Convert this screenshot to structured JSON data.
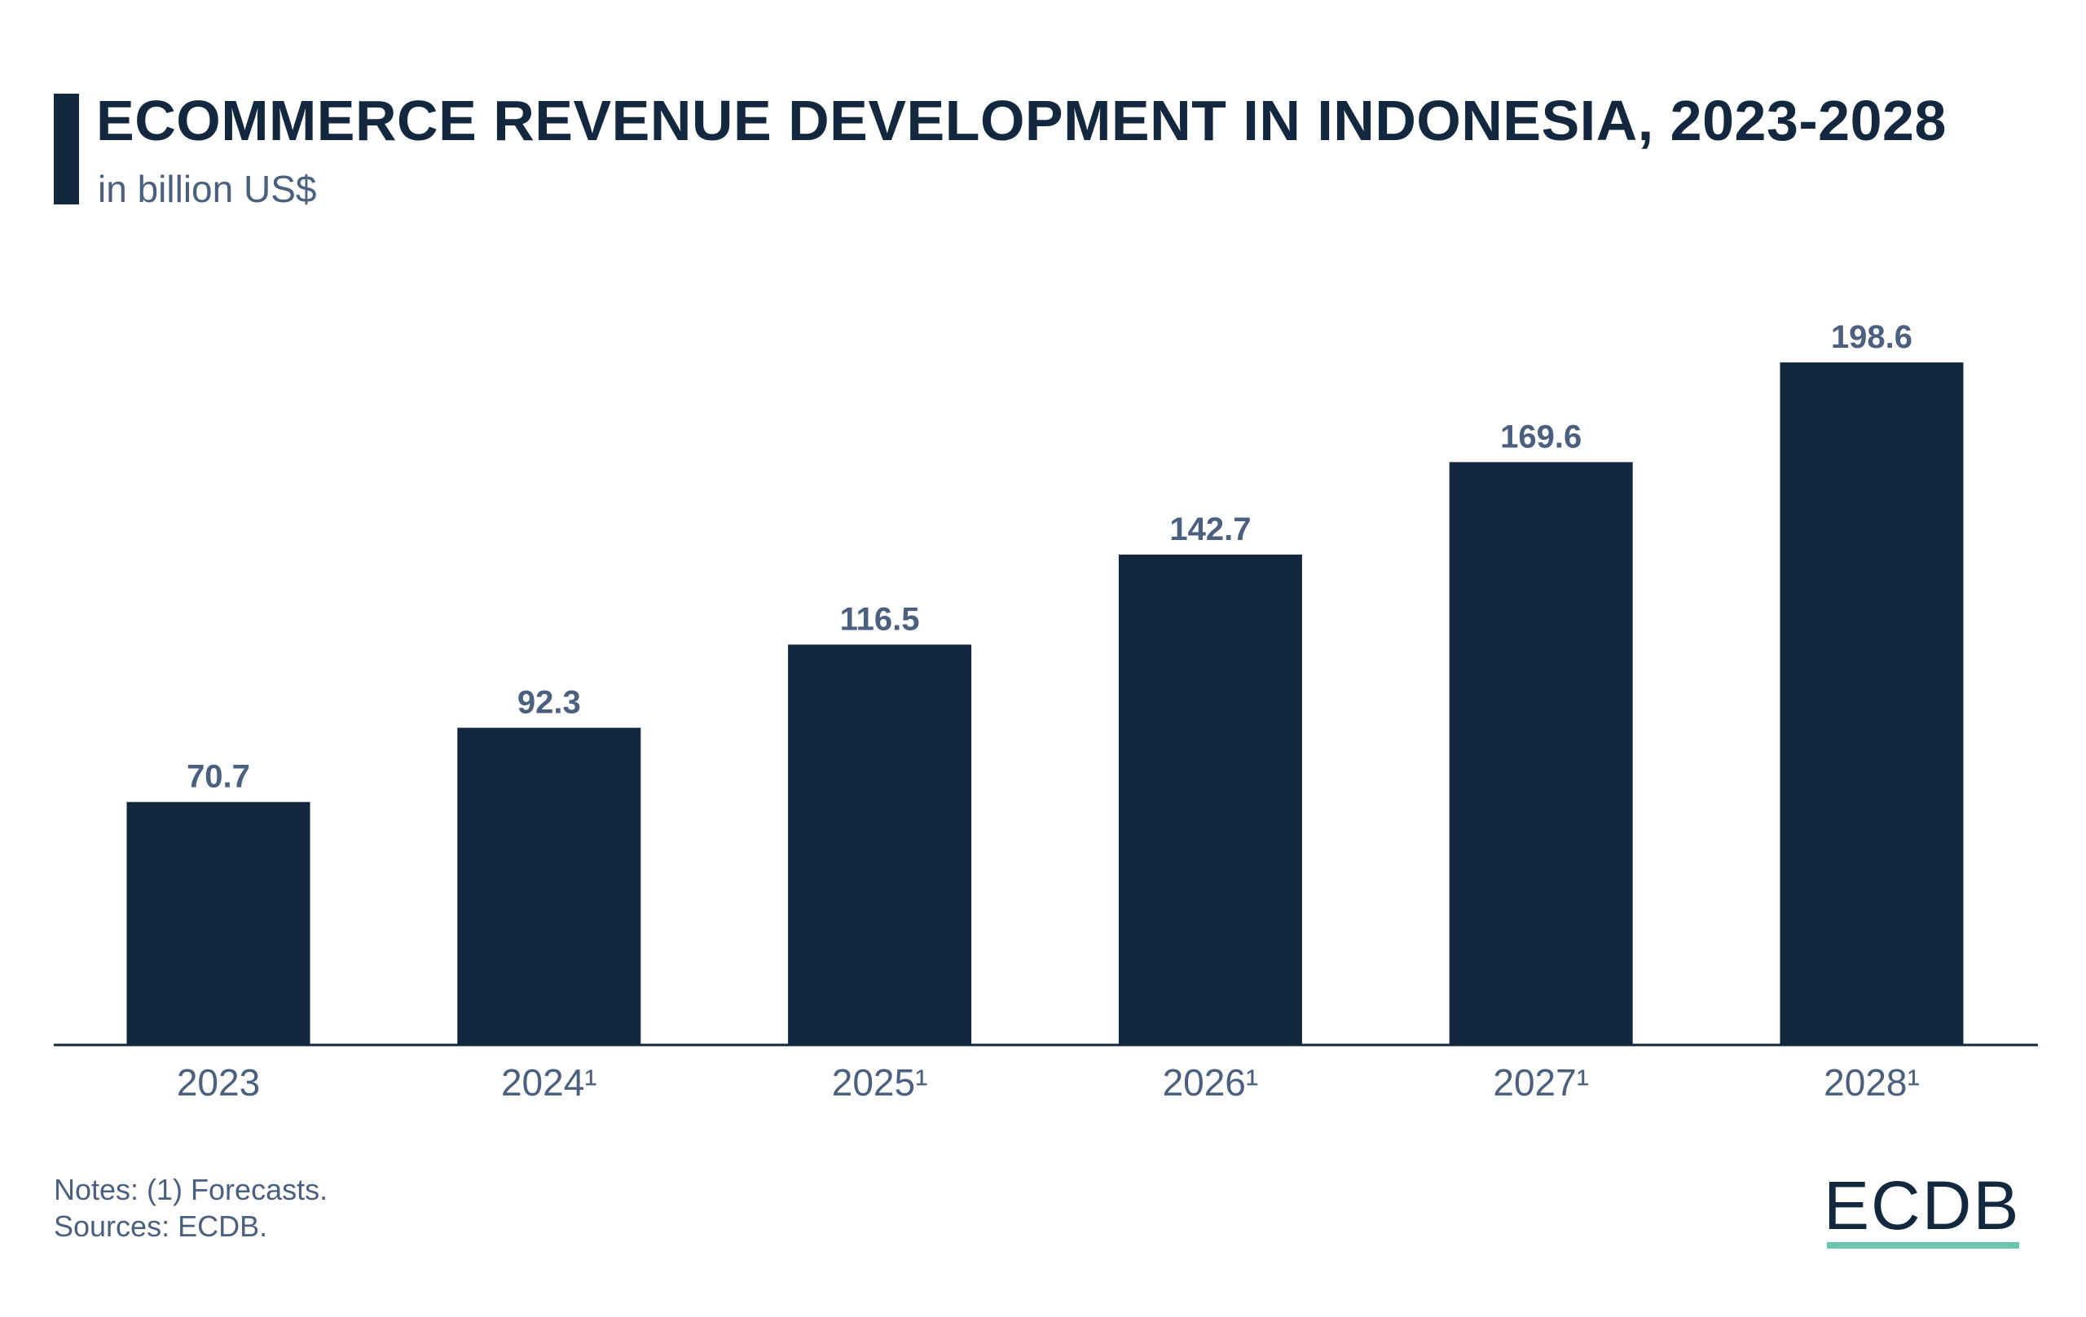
{
  "chart_data": {
    "type": "bar",
    "title": "ECOMMERCE REVENUE DEVELOPMENT IN INDONESIA, 2023-2028",
    "subtitle": "in billion US$",
    "categories": [
      "2023",
      "2024¹",
      "2025¹",
      "2026¹",
      "2027¹",
      "2028¹"
    ],
    "values": [
      70.7,
      92.3,
      116.5,
      142.7,
      169.6,
      198.6
    ],
    "value_labels": [
      "70.7",
      "92.3",
      "116.5",
      "142.7",
      "169.6",
      "198.6"
    ],
    "xlabel": "",
    "ylabel": "",
    "ylim": [
      0,
      198.6
    ],
    "grid": false,
    "legend": "none",
    "colors": {
      "bar": "#13283f",
      "label": "#4a607e",
      "accent": "#6cc5ae"
    }
  },
  "footer": {
    "notes": "Notes: (1) Forecasts.",
    "sources": "Sources: ECDB.",
    "logo": "ECDB"
  }
}
